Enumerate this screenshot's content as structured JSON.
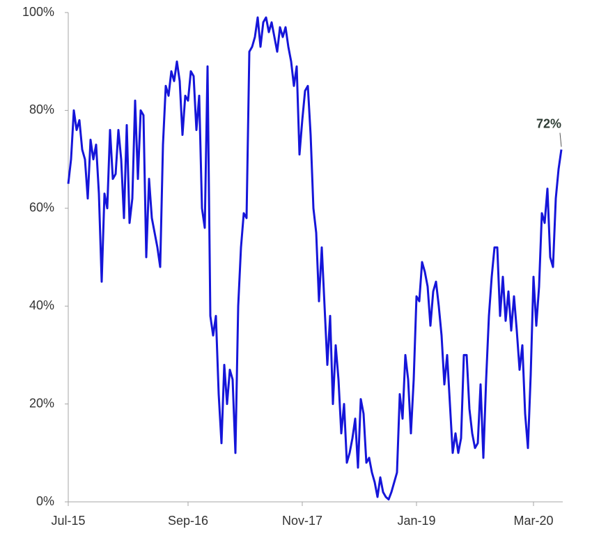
{
  "chart_data": {
    "type": "line",
    "categories": [
      "Jul-15",
      null,
      null,
      null,
      null,
      null,
      null,
      null,
      null,
      null,
      null,
      null,
      null,
      null,
      null,
      null,
      null,
      null,
      null,
      null,
      null,
      null,
      null,
      null,
      null,
      null,
      null,
      null,
      null,
      null,
      null,
      null,
      null,
      null,
      null,
      null,
      null,
      null,
      null,
      null,
      null,
      null,
      null,
      "Sep-16",
      null,
      null,
      null,
      null,
      null,
      null,
      null,
      null,
      null,
      null,
      null,
      null,
      null,
      null,
      null,
      null,
      null,
      null,
      null,
      null,
      null,
      null,
      null,
      null,
      null,
      null,
      null,
      null,
      null,
      null,
      null,
      null,
      null,
      null,
      null,
      null,
      null,
      null,
      null,
      null,
      "Nov-17",
      null,
      null,
      null,
      null,
      null,
      null,
      null,
      null,
      null,
      null,
      null,
      null,
      null,
      null,
      null,
      null,
      null,
      null,
      null,
      null,
      null,
      null,
      null,
      null,
      null,
      null,
      null,
      null,
      null,
      null,
      null,
      null,
      null,
      null,
      null,
      null,
      null,
      null,
      null,
      null,
      "Jan-19",
      null,
      null,
      null,
      null,
      null,
      null,
      null,
      null,
      null,
      null,
      null,
      null,
      null,
      null,
      null,
      null,
      null,
      null,
      null,
      null,
      null,
      null,
      null,
      null,
      null,
      null,
      null,
      null,
      null,
      null,
      null,
      null,
      null,
      null,
      null,
      null,
      null,
      null,
      null,
      null,
      null,
      "Mar-20",
      null,
      null,
      null,
      null,
      null,
      null,
      null,
      null,
      null,
      null
    ],
    "series": [
      {
        "name": null,
        "color": "#1515d9",
        "values": [
          65,
          70,
          80,
          76,
          78,
          72,
          70,
          62,
          74,
          70,
          73,
          63,
          45,
          63,
          60,
          76,
          66,
          67,
          76,
          70,
          58,
          77,
          57,
          62,
          82,
          66,
          80,
          79,
          50,
          66,
          58,
          55,
          52,
          48,
          73,
          85,
          83,
          88,
          86,
          90,
          86,
          75,
          83,
          82,
          88,
          87,
          76,
          83,
          60,
          56,
          89,
          38,
          34,
          38,
          22,
          12,
          28,
          20,
          27,
          25,
          10,
          40,
          52,
          59,
          58,
          92,
          93,
          95,
          99,
          93,
          98,
          99,
          96,
          98,
          95,
          92,
          97,
          95,
          97,
          93,
          90,
          85,
          89,
          71,
          78,
          84,
          85,
          75,
          60,
          55,
          41,
          52,
          40,
          28,
          38,
          20,
          32,
          25,
          14,
          20,
          8,
          10,
          13,
          17,
          7,
          21,
          18,
          8,
          9,
          6,
          4,
          1,
          5,
          2,
          1,
          0.5,
          2,
          4,
          6,
          22,
          17,
          30,
          25,
          14,
          25,
          42,
          41,
          49,
          47,
          44,
          36,
          43,
          45,
          40,
          34,
          24,
          30,
          20,
          10,
          14,
          10,
          13,
          30,
          30,
          19,
          14,
          11,
          12,
          24,
          9,
          25,
          38,
          46,
          52,
          52,
          38,
          46,
          37,
          43,
          35,
          42,
          35,
          27,
          32,
          18,
          11,
          26,
          46,
          36,
          44,
          59,
          57,
          64,
          50,
          48,
          62,
          68,
          72
        ]
      }
    ],
    "ylim": [
      0,
      100
    ],
    "yticks": [
      {
        "value": 0,
        "label": "0%"
      },
      {
        "value": 20,
        "label": "20%"
      },
      {
        "value": 40,
        "label": "40%"
      },
      {
        "value": 60,
        "label": "60%"
      },
      {
        "value": 80,
        "label": "80%"
      },
      {
        "value": 100,
        "label": "100%"
      }
    ],
    "grid": false,
    "annotations": [
      {
        "label": "72%",
        "value": 72
      }
    ]
  }
}
